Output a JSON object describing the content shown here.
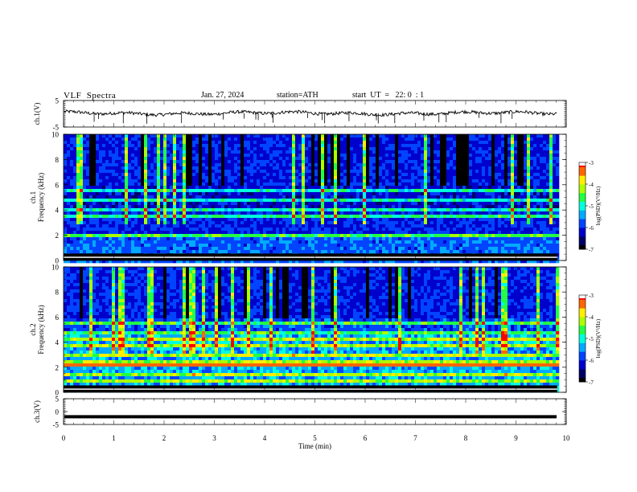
{
  "header": {
    "title": "VLF  Spectra",
    "date": "Jan. 27, 2024",
    "station": "station=ATH",
    "start_ut": "start  UT  =   22: 0  : 1"
  },
  "chart_data": [
    {
      "type": "line",
      "ylabel": "ch.1(V)",
      "ylim": [
        -5,
        5
      ],
      "yticks": [
        "5",
        "-5"
      ],
      "xlim": [
        0,
        10
      ],
      "level": 0.2,
      "noise": 1.2
    },
    {
      "type": "heatmap",
      "ylabel": "ch.1\nFrequency (kHz)",
      "ylim": [
        0,
        10
      ],
      "yticks": [
        "0",
        "2",
        "4",
        "6",
        "8",
        "10"
      ],
      "xlim": [
        0,
        10
      ],
      "data_extent_min": 9.82,
      "colorbar": {
        "label": "log(PSD)(V²/Hz)",
        "range": [
          -7,
          -3
        ],
        "ticks": [
          "-3",
          "-4",
          "-5",
          "-6",
          "-7"
        ]
      },
      "bands_khz": [
        1.0,
        1.5,
        2.1,
        2.5,
        3.0,
        3.6,
        4.2,
        4.8,
        5.6
      ]
    },
    {
      "type": "heatmap",
      "ylabel": "ch.2\nFrequency (kHz)",
      "ylim": [
        0,
        10
      ],
      "yticks": [
        "0",
        "2",
        "4",
        "6",
        "8",
        "10"
      ],
      "xlim": [
        0,
        10
      ],
      "data_extent_min": 9.82,
      "colorbar": {
        "label": "log(PSD)(V²/Hz)",
        "range": [
          -7,
          -3
        ],
        "ticks": [
          "-3",
          "-4",
          "-5",
          "-6",
          "-7"
        ]
      },
      "bands_khz": [
        1.0,
        1.5,
        2.1,
        2.5,
        3.0,
        3.6,
        4.2,
        4.8,
        5.6
      ]
    },
    {
      "type": "line",
      "ylabel": "ch.3(V)",
      "ylim": [
        -5,
        5
      ],
      "yticks": [
        "5",
        "0",
        "-5"
      ],
      "xlim": [
        0,
        10
      ],
      "level": -2.0,
      "noise": 0.0
    }
  ],
  "xaxis": {
    "label": "Time  (min)",
    "ticks": [
      "0",
      "1",
      "2",
      "3",
      "4",
      "5",
      "6",
      "7",
      "8",
      "9",
      "10"
    ]
  },
  "colormap": [
    "#000000",
    "#000066",
    "#0000cc",
    "#0044ff",
    "#00aaff",
    "#00ffdd",
    "#22ff44",
    "#aaff00",
    "#ffee00",
    "#ff6600",
    "#ff0000",
    "#ffffff"
  ]
}
